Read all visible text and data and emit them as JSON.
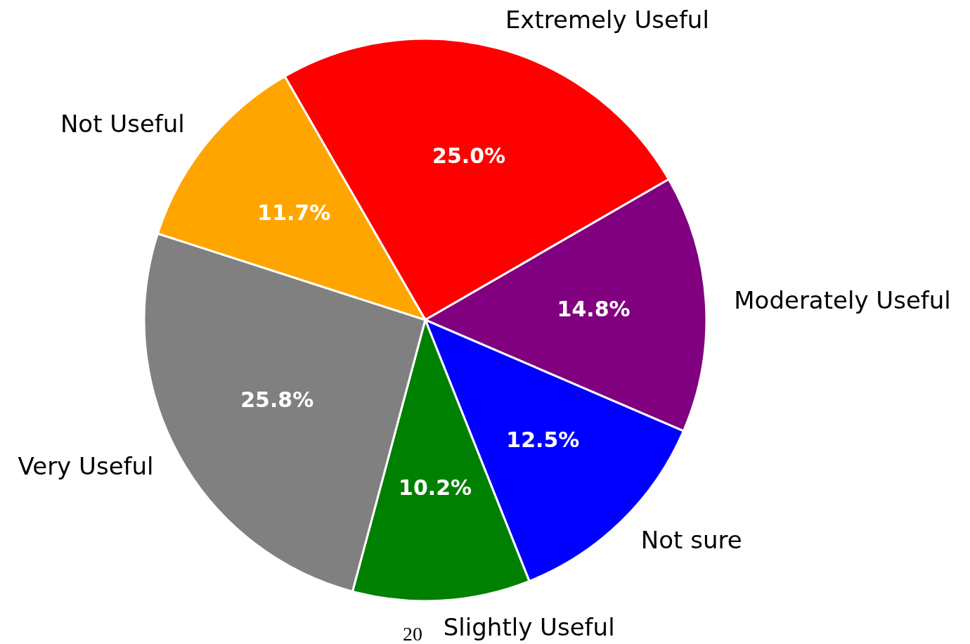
{
  "chart_data": {
    "type": "pie",
    "categories": [
      "Extremely Useful",
      "Moderately Useful",
      "Not sure",
      "Slightly Useful",
      "Very Useful",
      "Not Useful"
    ],
    "values": [
      25.0,
      14.8,
      12.5,
      10.2,
      25.8,
      11.7
    ],
    "colors": [
      "#ff0000",
      "#800080",
      "#0000ff",
      "#008000",
      "#808080",
      "#ffa500"
    ],
    "value_labels": [
      "25.0%",
      "14.8%",
      "12.5%",
      "10.2%",
      "25.8%",
      "11.7%"
    ],
    "annotations": [
      "20"
    ]
  }
}
